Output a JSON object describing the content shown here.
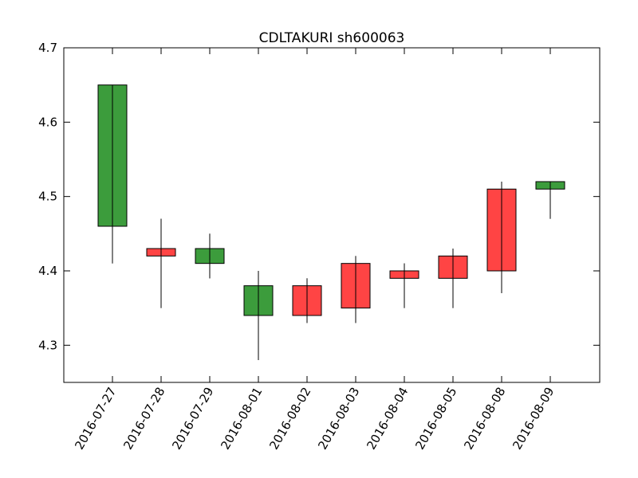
{
  "chart_data": {
    "type": "candlestick",
    "title": "CDLTAKURI sh600063",
    "xlabel": "",
    "ylabel": "",
    "ylim": [
      4.25,
      4.7
    ],
    "yticks": [
      "4.3",
      "4.4",
      "4.5",
      "4.6",
      "4.7"
    ],
    "categories": [
      "2016-07-27",
      "2016-07-28",
      "2016-07-29",
      "2016-08-01",
      "2016-08-02",
      "2016-08-03",
      "2016-08-04",
      "2016-08-05",
      "2016-08-08",
      "2016-08-09"
    ],
    "candles": [
      {
        "date": "2016-07-27",
        "open": 4.65,
        "close": 4.46,
        "high": 4.65,
        "low": 4.41
      },
      {
        "date": "2016-07-28",
        "open": 4.42,
        "close": 4.43,
        "high": 4.47,
        "low": 4.35
      },
      {
        "date": "2016-07-29",
        "open": 4.43,
        "close": 4.41,
        "high": 4.45,
        "low": 4.39
      },
      {
        "date": "2016-08-01",
        "open": 4.38,
        "close": 4.34,
        "high": 4.4,
        "low": 4.28
      },
      {
        "date": "2016-08-02",
        "open": 4.34,
        "close": 4.38,
        "high": 4.39,
        "low": 4.33
      },
      {
        "date": "2016-08-03",
        "open": 4.35,
        "close": 4.41,
        "high": 4.42,
        "low": 4.33
      },
      {
        "date": "2016-08-04",
        "open": 4.39,
        "close": 4.4,
        "high": 4.41,
        "low": 4.35
      },
      {
        "date": "2016-08-05",
        "open": 4.39,
        "close": 4.42,
        "high": 4.43,
        "low": 4.35
      },
      {
        "date": "2016-08-08",
        "open": 4.4,
        "close": 4.51,
        "high": 4.52,
        "low": 4.37
      },
      {
        "date": "2016-08-09",
        "open": 4.52,
        "close": 4.51,
        "high": 4.52,
        "low": 4.47
      }
    ],
    "colors": {
      "up": "#ff4444",
      "down": "#3c9c3c",
      "edge": "#000000"
    },
    "grid": false,
    "legend": "none"
  }
}
